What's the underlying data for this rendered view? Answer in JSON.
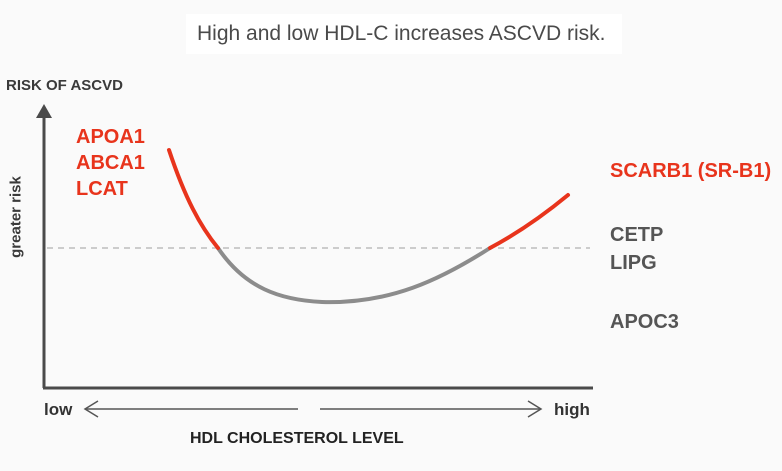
{
  "title": "High and low HDL-C increases ASCVD risk.",
  "y_axis": {
    "top_label": "RISK OF ASCVD",
    "side_label": "greater risk"
  },
  "x_axis": {
    "label": "HDL CHOLESTEROL LEVEL",
    "low_label": "low",
    "high_label": "high"
  },
  "genes_low_hdl": [
    "APOA1",
    "ABCA1",
    "LCAT"
  ],
  "genes_high_hdl_red": [
    "SCARB1 (SR-B1)"
  ],
  "genes_high_hdl_gray": [
    "CETP",
    "LIPG",
    "APOC3"
  ],
  "colors": {
    "risk_segment": "#e8341c",
    "baseline_curve": "#8c8c8c",
    "axis": "#4a4a4a",
    "threshold_line": "#bdbdbd"
  }
}
